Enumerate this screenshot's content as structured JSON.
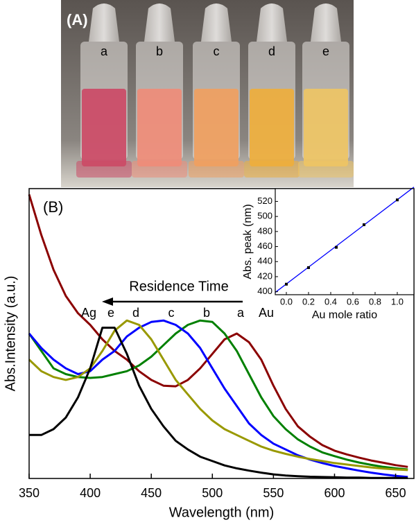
{
  "panel_a": {
    "label": "(A)",
    "tube_labels": [
      "a",
      "b",
      "c",
      "d",
      "e"
    ]
  },
  "chart_data": [
    {
      "type": "line",
      "x_label": "Wavelength (nm)",
      "y_label": "Abs.Intensity (a.u.)",
      "annotations": [
        "(B)",
        "Residence Time",
        "Ag",
        "Au"
      ],
      "x": [
        350,
        360,
        370,
        380,
        390,
        400,
        410,
        420,
        430,
        440,
        450,
        460,
        470,
        480,
        490,
        500,
        510,
        520,
        530,
        540,
        550,
        560,
        570,
        580,
        590,
        600,
        610,
        620,
        630,
        640,
        650,
        660
      ],
      "series": [
        {
          "name": "a",
          "color": "#8b0000",
          "values": [
            0.98,
            0.84,
            0.72,
            0.63,
            0.57,
            0.53,
            0.48,
            0.44,
            0.41,
            0.37,
            0.34,
            0.32,
            0.318,
            0.34,
            0.38,
            0.43,
            0.48,
            0.5,
            0.47,
            0.41,
            0.32,
            0.24,
            0.18,
            0.144,
            0.115,
            0.096,
            0.083,
            0.072,
            0.062,
            0.054,
            0.046,
            0.04
          ]
        },
        {
          "name": "b",
          "color": "#008000",
          "values": [
            0.5,
            0.44,
            0.38,
            0.36,
            0.35,
            0.347,
            0.35,
            0.36,
            0.37,
            0.39,
            0.42,
            0.46,
            0.5,
            0.53,
            0.545,
            0.54,
            0.5,
            0.44,
            0.36,
            0.28,
            0.215,
            0.17,
            0.135,
            0.11,
            0.09,
            0.077,
            0.065,
            0.055,
            0.047,
            0.04,
            0.035,
            0.031
          ]
        },
        {
          "name": "c",
          "color": "#0000ff",
          "values": [
            0.5,
            0.45,
            0.41,
            0.38,
            0.36,
            0.37,
            0.41,
            0.44,
            0.49,
            0.52,
            0.54,
            0.545,
            0.53,
            0.5,
            0.45,
            0.38,
            0.31,
            0.25,
            0.19,
            0.15,
            0.12,
            0.1,
            0.08,
            0.065,
            0.053,
            0.043,
            0.035,
            0.027,
            0.02,
            0.014,
            0.009,
            0.005
          ]
        },
        {
          "name": "d",
          "color": "#999900",
          "values": [
            0.41,
            0.37,
            0.35,
            0.34,
            0.35,
            0.38,
            0.44,
            0.51,
            0.545,
            0.53,
            0.48,
            0.41,
            0.34,
            0.29,
            0.24,
            0.2,
            0.17,
            0.15,
            0.13,
            0.11,
            0.096,
            0.085,
            0.075,
            0.067,
            0.06,
            0.053,
            0.048,
            0.043,
            0.038,
            0.034,
            0.031,
            0.029
          ]
        },
        {
          "name": "e",
          "color": "#000000",
          "values": [
            0.15,
            0.15,
            0.17,
            0.21,
            0.28,
            0.38,
            0.52,
            0.52,
            0.43,
            0.32,
            0.24,
            0.18,
            0.13,
            0.1,
            0.075,
            0.06,
            0.045,
            0.035,
            0.027,
            0.02,
            0.014,
            0.01,
            0.008,
            0.006,
            0.005,
            0.004,
            0.003,
            0.003,
            0.002,
            0.002,
            0.002,
            0.002
          ]
        }
      ],
      "xlim": [
        350,
        665
      ],
      "ylim": [
        0,
        1
      ],
      "xticks": [
        350,
        400,
        450,
        500,
        550,
        600,
        650
      ]
    },
    {
      "type": "scatter",
      "x_label": "Au mole ratio",
      "y_label": "Abs. peak (nm)",
      "x": [
        0,
        0.2,
        0.45,
        0.7,
        1.0
      ],
      "values": [
        410,
        432,
        459,
        489,
        522
      ],
      "color": "#000000",
      "fit": {
        "x": [
          -0.1,
          1.15
        ],
        "values": [
          399,
          539
        ],
        "color": "#0000ff"
      },
      "xlim": [
        -0.1,
        1.15
      ],
      "ylim": [
        396,
        537
      ],
      "xticks": [
        {
          "value": 0,
          "label": "0.0"
        },
        0.2,
        0.4,
        0.6,
        0.8,
        {
          "value": 1,
          "label": "1.0"
        }
      ],
      "yticks": [
        400,
        420,
        440,
        460,
        480,
        500,
        520
      ]
    }
  ]
}
